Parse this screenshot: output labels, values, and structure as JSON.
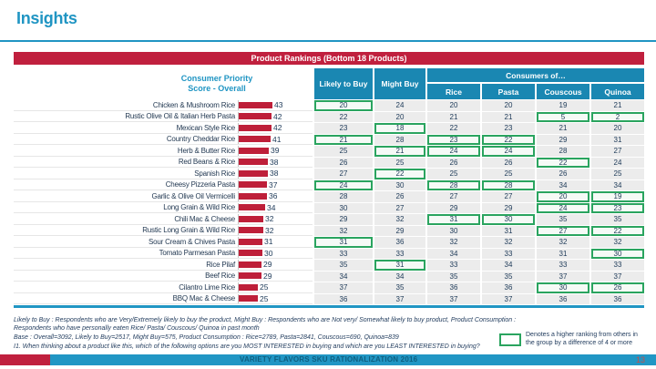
{
  "title": "Insights",
  "banner": "Product Rankings (Bottom 18 Products)",
  "columns": {
    "chart_header_line1": "Consumer Priority",
    "chart_header_line2": "Score - Overall",
    "likely": "Likely to Buy",
    "might": "Might Buy",
    "consumers_of": "Consumers of…",
    "subcolumns": [
      "Rice",
      "Pasta",
      "Couscous",
      "Quinoa"
    ]
  },
  "chart_data": {
    "type": "bar",
    "orientation": "horizontal",
    "title": "Consumer Priority Score - Overall",
    "categories": [
      "Chicken & Mushroom Rice",
      "Rustic Olive Oil & Italian Herb Pasta",
      "Mexican Style Rice",
      "Country Cheddar Rice",
      "Herb & Butter Rice",
      "Red Beans & Rice",
      "Spanish Rice",
      "Cheesy Pizzeria Pasta",
      "Garlic & Olive Oil Vermicelli",
      "Long Grain & Wild Rice",
      "Chili Mac & Cheese",
      "Rustic Long Grain & Wild Rice",
      "Sour Cream & Chives Pasta",
      "Tomato Parmesan Pasta",
      "Rice Pilaf",
      "Beef Rice",
      "Cilantro Lime Rice",
      "BBQ Mac & Cheese"
    ],
    "values": [
      43,
      42,
      42,
      41,
      39,
      38,
      38,
      37,
      36,
      34,
      32,
      32,
      31,
      30,
      29,
      29,
      25,
      25
    ],
    "xlim": [
      0,
      50
    ],
    "bar_color": "#be1f39",
    "data_labels": true
  },
  "rows": [
    {
      "product": "Chicken & Mushroom Rice",
      "score": 43,
      "likely": 20,
      "might": 24,
      "rice": 20,
      "pasta": 20,
      "couscous": 19,
      "quinoa": 21,
      "hl": [
        "likely"
      ]
    },
    {
      "product": "Rustic Olive Oil & Italian Herb Pasta",
      "score": 42,
      "likely": 22,
      "might": 20,
      "rice": 21,
      "pasta": 21,
      "couscous": 5,
      "quinoa": 2,
      "hl": [
        "couscous",
        "quinoa"
      ]
    },
    {
      "product": "Mexican Style Rice",
      "score": 42,
      "likely": 23,
      "might": 18,
      "rice": 22,
      "pasta": 23,
      "couscous": 21,
      "quinoa": 20,
      "hl": [
        "might"
      ]
    },
    {
      "product": "Country Cheddar Rice",
      "score": 41,
      "likely": 21,
      "might": 28,
      "rice": 23,
      "pasta": 22,
      "couscous": 29,
      "quinoa": 31,
      "hl": [
        "likely",
        "rice",
        "pasta"
      ]
    },
    {
      "product": "Herb & Butter Rice",
      "score": 39,
      "likely": 25,
      "might": 21,
      "rice": 24,
      "pasta": 24,
      "couscous": 28,
      "quinoa": 27,
      "hl": [
        "might",
        "rice",
        "pasta"
      ]
    },
    {
      "product": "Red Beans & Rice",
      "score": 38,
      "likely": 26,
      "might": 25,
      "rice": 26,
      "pasta": 26,
      "couscous": 22,
      "quinoa": 24,
      "hl": [
        "couscous"
      ]
    },
    {
      "product": "Spanish Rice",
      "score": 38,
      "likely": 27,
      "might": 22,
      "rice": 25,
      "pasta": 25,
      "couscous": 26,
      "quinoa": 25,
      "hl": [
        "might"
      ]
    },
    {
      "product": "Cheesy Pizzeria Pasta",
      "score": 37,
      "likely": 24,
      "might": 30,
      "rice": 28,
      "pasta": 28,
      "couscous": 34,
      "quinoa": 34,
      "hl": [
        "likely",
        "rice",
        "pasta"
      ]
    },
    {
      "product": "Garlic & Olive Oil Vermicelli",
      "score": 36,
      "likely": 28,
      "might": 26,
      "rice": 27,
      "pasta": 27,
      "couscous": 20,
      "quinoa": 19,
      "hl": [
        "couscous",
        "quinoa"
      ]
    },
    {
      "product": "Long Grain & Wild Rice",
      "score": 34,
      "likely": 30,
      "might": 27,
      "rice": 29,
      "pasta": 29,
      "couscous": 24,
      "quinoa": 23,
      "hl": [
        "couscous",
        "quinoa"
      ]
    },
    {
      "product": "Chili Mac & Cheese",
      "score": 32,
      "likely": 29,
      "might": 32,
      "rice": 31,
      "pasta": 30,
      "couscous": 35,
      "quinoa": 35,
      "hl": [
        "rice",
        "pasta"
      ]
    },
    {
      "product": "Rustic Long Grain & Wild Rice",
      "score": 32,
      "likely": 32,
      "might": 29,
      "rice": 30,
      "pasta": 31,
      "couscous": 27,
      "quinoa": 22,
      "hl": [
        "couscous",
        "quinoa"
      ]
    },
    {
      "product": "Sour Cream & Chives Pasta",
      "score": 31,
      "likely": 31,
      "might": 36,
      "rice": 32,
      "pasta": 32,
      "couscous": 32,
      "quinoa": 32,
      "hl": [
        "likely"
      ]
    },
    {
      "product": "Tomato Parmesan Pasta",
      "score": 30,
      "likely": 33,
      "might": 33,
      "rice": 34,
      "pasta": 33,
      "couscous": 31,
      "quinoa": 30,
      "hl": [
        "quinoa"
      ]
    },
    {
      "product": "Rice Pilaf",
      "score": 29,
      "likely": 35,
      "might": 31,
      "rice": 33,
      "pasta": 34,
      "couscous": 33,
      "quinoa": 33,
      "hl": [
        "might"
      ]
    },
    {
      "product": "Beef Rice",
      "score": 29,
      "likely": 34,
      "might": 34,
      "rice": 35,
      "pasta": 35,
      "couscous": 37,
      "quinoa": 37,
      "hl": []
    },
    {
      "product": "Cilantro Lime Rice",
      "score": 25,
      "likely": 37,
      "might": 35,
      "rice": 36,
      "pasta": 36,
      "couscous": 30,
      "quinoa": 26,
      "hl": [
        "couscous",
        "quinoa"
      ]
    },
    {
      "product": "BBQ Mac & Cheese",
      "score": 25,
      "likely": 36,
      "might": 37,
      "rice": 37,
      "pasta": 37,
      "couscous": 36,
      "quinoa": 36,
      "hl": []
    }
  ],
  "footnotes": [
    "Likely to Buy : Respondents who are Very/Extremely likely to buy the product, Might Buy : Respondents who are Not very/ Somewhat likely to buy product, Product Consumption : Respondents who have personally eaten Rice/ Pasta/ Couscous/ Quinoa in past month",
    "Base : Overall=3092, Likely to Buy=2517, Might Buy=575, Product Consumption : Rice=2789, Pasta=2841, Couscous=690, Quinoa=839",
    "I1. When thinking about a product like this, which of the following options are you MOST INTERESTED in buying and which are you LEAST INTERESTED in buying?"
  ],
  "legend": {
    "text": "Denotes a higher ranking from others in the group by a difference of 4 or more"
  },
  "footer": {
    "text": "VARIETY FLAVORS SKU RATIONALIZATION 2016",
    "page": "13"
  },
  "colors": {
    "accent_teal": "#2095c3",
    "banner_red": "#c0203e",
    "header_blue": "#1a87b2",
    "bar_red": "#be1f39",
    "highlight_green": "#2aa45f",
    "cell_gray": "#ececec",
    "text_navy": "#203c5a"
  }
}
